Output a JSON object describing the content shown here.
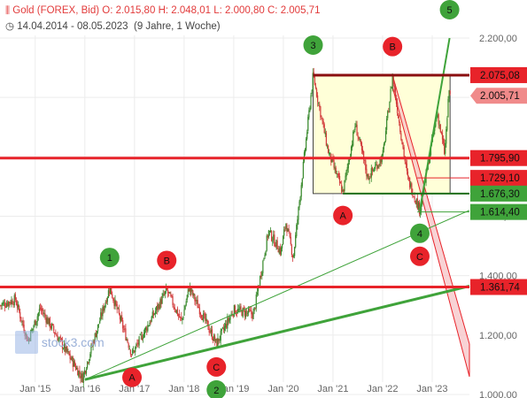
{
  "header": {
    "title": "Gold (FOREX, Bid)",
    "open": "O: 2.015,80",
    "high": "H: 2.048,01",
    "low": "L: 2.000,80",
    "close": "C: 2.005,71",
    "range": "14.04.2014 - 08.05.2023",
    "span": "(9 Jahre, 1 Woche)",
    "icon": "candlestick-chart-icon",
    "clock_icon": "clock-icon"
  },
  "watermark": "stock3.com",
  "colors": {
    "up": "#3a8a2e",
    "down": "#d23b3b",
    "resistance": "#e8232a",
    "support_green": "#3fa33a",
    "box_fill": "#ffffd8"
  },
  "chart_data": {
    "type": "candlestick",
    "title": "Gold (FOREX, Bid)",
    "xlabel": "",
    "ylabel": "",
    "x_ticks": [
      "Jan '15",
      "Jan '16",
      "Jan '17",
      "Jan '18",
      "Jan '19",
      "Jan '20",
      "Jan '21",
      "Jan '22",
      "Jan '23"
    ],
    "y_ticks": [
      "1.000,00",
      "1.200,00",
      "1.400,00",
      "1.600,00",
      "1.800,00",
      "2.000,00",
      "2.200,00"
    ],
    "ylim": [
      1000,
      2300
    ],
    "price_path": [
      {
        "t": 2014.29,
        "p": 1300
      },
      {
        "t": 2014.6,
        "p": 1320
      },
      {
        "t": 2014.85,
        "p": 1180
      },
      {
        "t": 2015.1,
        "p": 1290
      },
      {
        "t": 2015.5,
        "p": 1180
      },
      {
        "t": 2015.95,
        "p": 1055
      },
      {
        "t": 2016.5,
        "p": 1360
      },
      {
        "t": 2016.95,
        "p": 1135
      },
      {
        "t": 2017.65,
        "p": 1350
      },
      {
        "t": 2017.95,
        "p": 1245
      },
      {
        "t": 2018.1,
        "p": 1360
      },
      {
        "t": 2018.65,
        "p": 1170
      },
      {
        "t": 2019.0,
        "p": 1285
      },
      {
        "t": 2019.4,
        "p": 1270
      },
      {
        "t": 2019.7,
        "p": 1550
      },
      {
        "t": 2019.95,
        "p": 1480
      },
      {
        "t": 2020.05,
        "p": 1580
      },
      {
        "t": 2020.2,
        "p": 1460
      },
      {
        "t": 2020.6,
        "p": 2075
      },
      {
        "t": 2020.9,
        "p": 1820
      },
      {
        "t": 2021.2,
        "p": 1680
      },
      {
        "t": 2021.45,
        "p": 1910
      },
      {
        "t": 2021.7,
        "p": 1730
      },
      {
        "t": 2022.0,
        "p": 1800
      },
      {
        "t": 2022.2,
        "p": 2070
      },
      {
        "t": 2022.5,
        "p": 1730
      },
      {
        "t": 2022.75,
        "p": 1620
      },
      {
        "t": 2023.1,
        "p": 1950
      },
      {
        "t": 2023.25,
        "p": 1810
      },
      {
        "t": 2023.35,
        "p": 2048
      },
      {
        "t": 2023.36,
        "p": 2005.71
      }
    ],
    "levels": [
      {
        "label": "2.075,08",
        "value": 2075.08,
        "style": "red-box"
      },
      {
        "label": "2.005,71",
        "value": 2005.71,
        "style": "light-red-tag"
      },
      {
        "label": "1.795,90",
        "value": 1795.9,
        "style": "red-box"
      },
      {
        "label": "1.729,10",
        "value": 1729.1,
        "style": "red-box"
      },
      {
        "label": "1.676,30",
        "value": 1676.3,
        "style": "green-box"
      },
      {
        "label": "1.614,40",
        "value": 1614.4,
        "style": "green-box"
      },
      {
        "label": "1.361,74",
        "value": 1361.74,
        "style": "red-box"
      }
    ],
    "wave_labels": [
      {
        "label": "1",
        "color": "green",
        "t": 2016.5,
        "p": 1360,
        "pos": "above"
      },
      {
        "label": "A",
        "color": "red",
        "t": 2016.95,
        "p": 1135,
        "pos": "below"
      },
      {
        "label": "B",
        "color": "red",
        "t": 2017.65,
        "p": 1350,
        "pos": "above"
      },
      {
        "label": "C",
        "color": "red",
        "t": 2018.65,
        "p": 1170,
        "pos": "below"
      },
      {
        "label": "2",
        "color": "green",
        "t": 2018.65,
        "p": 1170,
        "pos": "below2"
      },
      {
        "label": "3",
        "color": "green",
        "t": 2020.6,
        "p": 2075,
        "pos": "above"
      },
      {
        "label": "A",
        "color": "red",
        "t": 2021.2,
        "p": 1680,
        "pos": "below"
      },
      {
        "label": "B",
        "color": "red",
        "t": 2022.2,
        "p": 2070,
        "pos": "above"
      },
      {
        "label": "4",
        "color": "green",
        "t": 2022.75,
        "p": 1620,
        "pos": "below"
      },
      {
        "label": "C",
        "color": "red",
        "t": 2022.75,
        "p": 1620,
        "pos": "below2"
      },
      {
        "label": "5",
        "color": "green",
        "t": 2023.35,
        "p": 2048,
        "pos": "top"
      }
    ]
  }
}
